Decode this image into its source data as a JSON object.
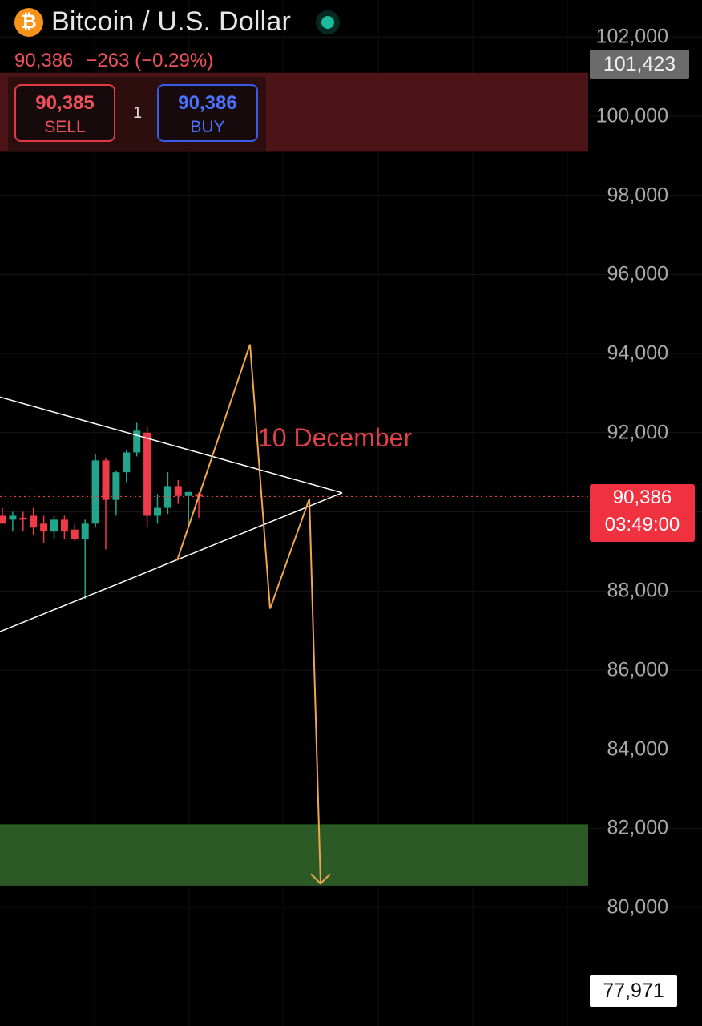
{
  "header": {
    "icon": "bitcoin-icon",
    "title": "Bitcoin / U.S. Dollar",
    "last_price": "90,386",
    "change": "−263 (−0.29%)"
  },
  "trade": {
    "sell_price": "90,385",
    "sell_label": "SELL",
    "quantity": "1",
    "buy_price": "90,386",
    "buy_label": "BUY"
  },
  "price_axis": {
    "top_tag": "101,423",
    "current_tag": "90,386",
    "countdown": "03:49:00",
    "bottom_tag": "77,971"
  },
  "annotation": "10 December",
  "colors": {
    "up": "#22a58a",
    "down": "#ee3b49",
    "resistance_zone": "#4d1418",
    "support_zone": "#2c5a24",
    "projection": "#f0a64c",
    "trendline": "#ffffff"
  },
  "chart_data": {
    "type": "candlestick",
    "ylim": [
      77971,
      102000
    ],
    "y_ticks": [
      102000,
      100000,
      98000,
      96000,
      94000,
      92000,
      90000,
      88000,
      86000,
      84000,
      82000,
      80000
    ],
    "y_tick_labels": [
      "102,000",
      "100,000",
      "98,000",
      "96,000",
      "94,000",
      "92,000",
      "90,000",
      "88,000",
      "86,000",
      "84,000",
      "82,000",
      "80,000"
    ],
    "candles": [
      {
        "o": 89900,
        "h": 90100,
        "l": 89700,
        "c": 89700
      },
      {
        "o": 89800,
        "h": 90000,
        "l": 89500,
        "c": 89900
      },
      {
        "o": 89850,
        "h": 90000,
        "l": 89500,
        "c": 89800
      },
      {
        "o": 89900,
        "h": 90100,
        "l": 89400,
        "c": 89600
      },
      {
        "o": 89700,
        "h": 89900,
        "l": 89200,
        "c": 89500
      },
      {
        "o": 89500,
        "h": 89900,
        "l": 89300,
        "c": 89800
      },
      {
        "o": 89800,
        "h": 89900,
        "l": 89300,
        "c": 89500
      },
      {
        "o": 89550,
        "h": 89700,
        "l": 89250,
        "c": 89300
      },
      {
        "o": 89300,
        "h": 89800,
        "l": 87800,
        "c": 89700
      },
      {
        "o": 89700,
        "h": 91450,
        "l": 89600,
        "c": 91300
      },
      {
        "o": 91300,
        "h": 91350,
        "l": 89050,
        "c": 90300
      },
      {
        "o": 90300,
        "h": 91050,
        "l": 89900,
        "c": 91000
      },
      {
        "o": 91000,
        "h": 91550,
        "l": 90750,
        "c": 91500
      },
      {
        "o": 91500,
        "h": 92250,
        "l": 91400,
        "c": 92050
      },
      {
        "o": 92000,
        "h": 92150,
        "l": 89600,
        "c": 89900
      },
      {
        "o": 89900,
        "h": 90450,
        "l": 89700,
        "c": 90100
      },
      {
        "o": 90100,
        "h": 91000,
        "l": 89950,
        "c": 90650
      },
      {
        "o": 90650,
        "h": 90800,
        "l": 90200,
        "c": 90400
      },
      {
        "o": 90400,
        "h": 90500,
        "l": 89600,
        "c": 90500
      },
      {
        "o": 90450,
        "h": 90500,
        "l": 89850,
        "c": 90386
      }
    ],
    "resistance_zone": [
      99100,
      101100
    ],
    "support_zone": [
      80550,
      82100
    ],
    "triangle": {
      "upper": [
        [
          0,
          92900
        ],
        [
          427,
          90480
        ]
      ],
      "lower": [
        [
          0,
          86970
        ],
        [
          427,
          90480
        ]
      ]
    },
    "projection_path": [
      [
        221,
        88770
      ],
      [
        312,
        94230
      ],
      [
        337,
        87550
      ],
      [
        386,
        90330
      ],
      [
        400,
        80600
      ]
    ],
    "current_price": 90386
  }
}
